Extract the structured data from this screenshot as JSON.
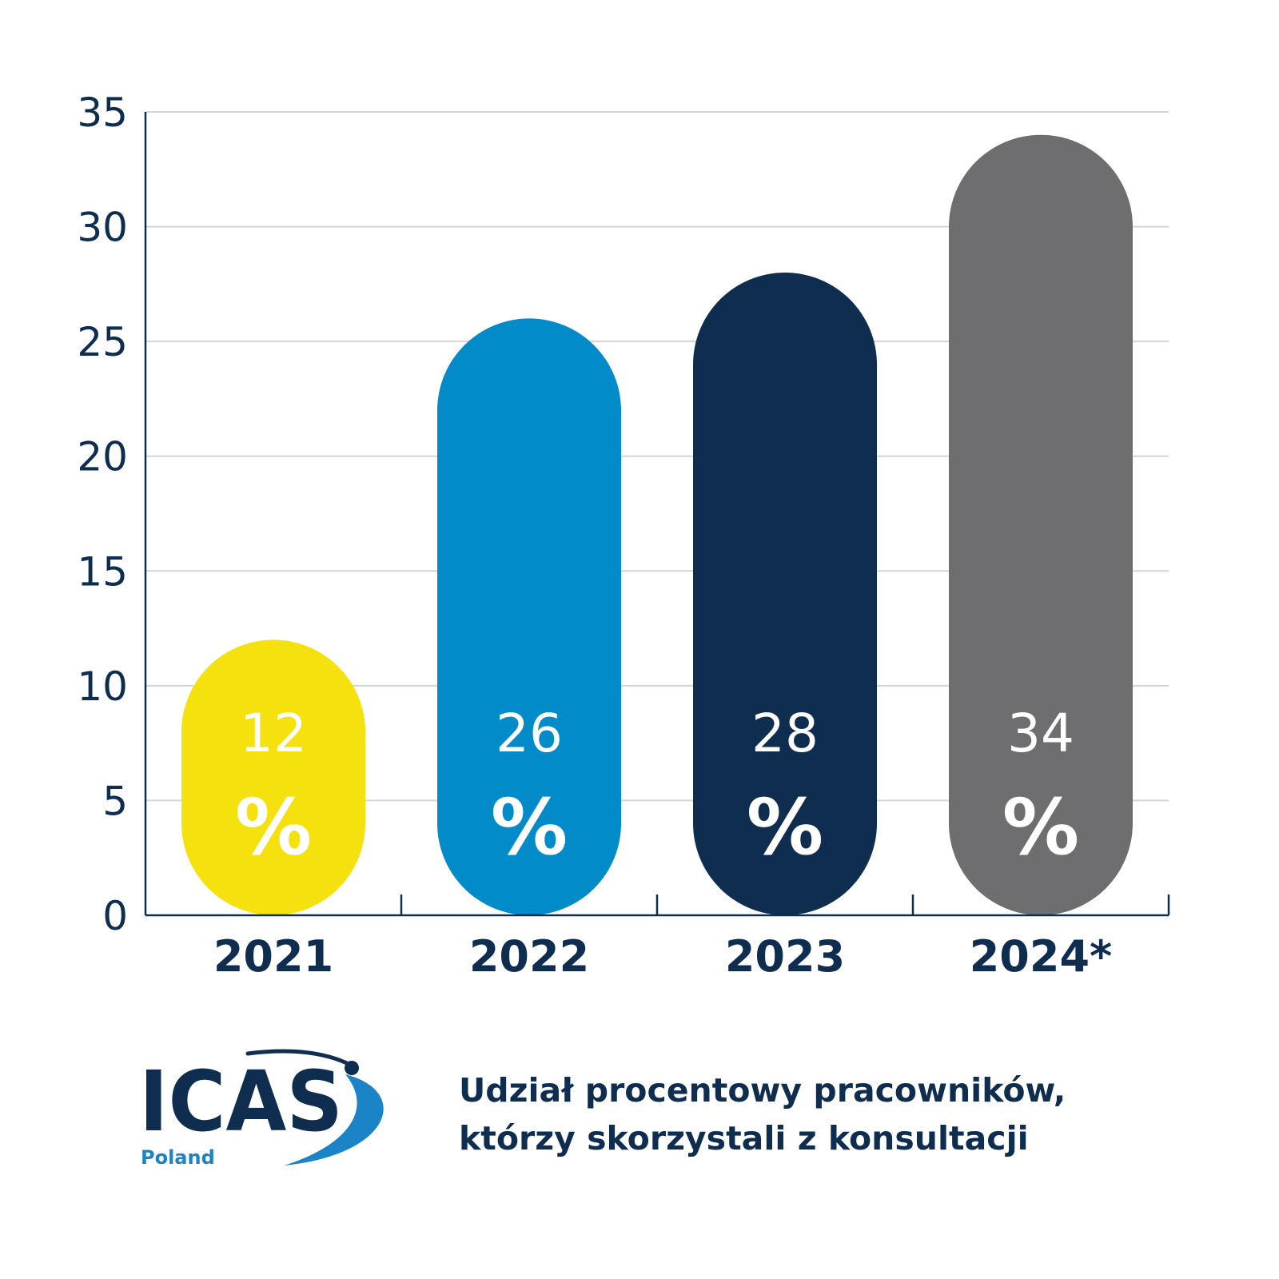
{
  "chart_data": {
    "type": "bar",
    "categories": [
      "2021",
      "2022",
      "2023",
      "2024*"
    ],
    "values": [
      12,
      26,
      28,
      34
    ],
    "value_labels": [
      "12",
      "26",
      "28",
      "34"
    ],
    "unit_symbol": "%",
    "colors": [
      "#f5e10d",
      "#028bc9",
      "#0f2d4f",
      "#6e6e71"
    ],
    "yticks": [
      "0",
      "5",
      "10",
      "15",
      "20",
      "25",
      "30",
      "35"
    ],
    "ylim": [
      0,
      35
    ],
    "grid": true,
    "title": "",
    "xlabel": "",
    "ylabel": ""
  },
  "caption": {
    "line1": "Udział procentowy pracowników,",
    "line2": "którzy skorzystali z konsultacji"
  },
  "logo": {
    "brand": "ICAS",
    "subtitle": "Poland",
    "colors": {
      "navy": "#0f2d4f",
      "blue": "#1b84c6"
    }
  }
}
